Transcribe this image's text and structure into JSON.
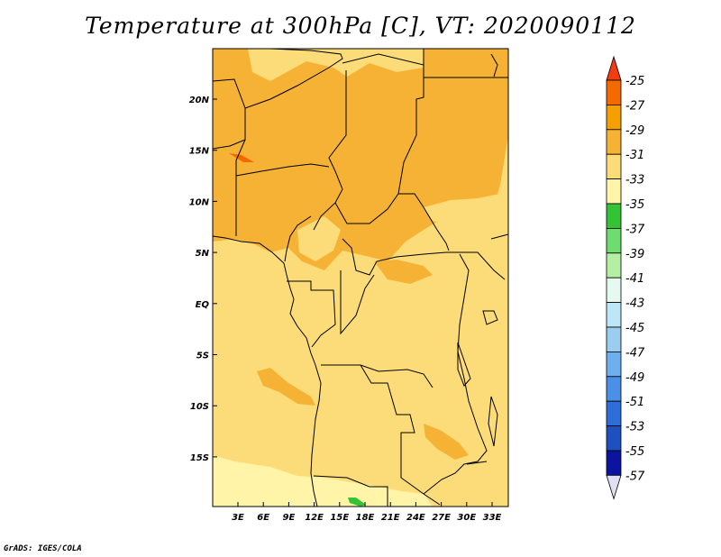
{
  "title": "Temperature at 300hPa [C], VT: 2020090112",
  "credit": "GrADS: IGES/COLA",
  "map": {
    "projection": "lat-lon",
    "lon_range": [
      0,
      35
    ],
    "lat_range": [
      -20,
      25
    ],
    "lat_tick_labels": [
      "20N",
      "15N",
      "10N",
      "5N",
      "EQ",
      "5S",
      "10S",
      "15S"
    ],
    "lon_tick_labels": [
      "3E",
      "6E",
      "9E",
      "12E",
      "15E",
      "18E",
      "21E",
      "24E",
      "27E",
      "30E",
      "33E"
    ],
    "field": "Temperature at 300hPa",
    "units": "C"
  },
  "colorbar": {
    "labels": [
      "-25",
      "-27",
      "-29",
      "-31",
      "-33",
      "-35",
      "-37",
      "-39",
      "-41",
      "-43",
      "-45",
      "-47",
      "-49",
      "-51",
      "-53",
      "-55",
      "-57"
    ],
    "colors": [
      "#f03c10",
      "#f56a00",
      "#f5a000",
      "#f6b235",
      "#fcdc78",
      "#fff4a8",
      "#34c334",
      "#6edc6e",
      "#b4f0a4",
      "#e6f9f0",
      "#bde6f7",
      "#9bcdf0",
      "#6eaff0",
      "#4b8fe6",
      "#2d6ed7",
      "#1e50be",
      "#0a14a0"
    ],
    "top_arrow_color": "#f03c10",
    "bottom_arrow_color": "#e0e0f4"
  }
}
